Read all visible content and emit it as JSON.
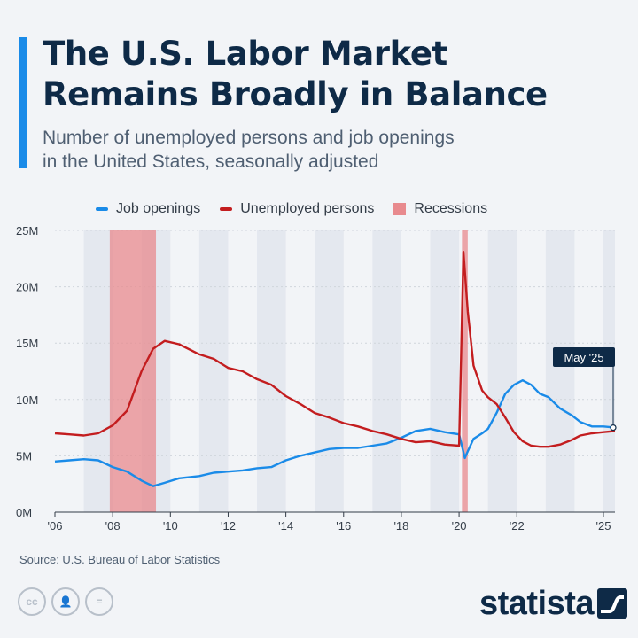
{
  "header": {
    "title_line1": "The U.S. Labor Market",
    "title_line2": "Remains Broadly in Balance",
    "subtitle_line1": "Number of unemployed persons and job openings",
    "subtitle_line2": "in the United States, seasonally adjusted"
  },
  "footer": {
    "source": "Source: U.S. Bureau of Labor Statistics",
    "brand": "statista",
    "license_icons": [
      "creative-commons-icon",
      "attribution-icon",
      "no-derivatives-icon"
    ]
  },
  "colors": {
    "job_openings": "#1a8be8",
    "unemployed": "#c31d1f",
    "recession": "#e88a8e",
    "accent": "#1a8be8",
    "navy": "#0e2a47"
  },
  "chart_data": {
    "type": "line",
    "title": "",
    "xlabel": "",
    "ylabel": "",
    "ylim": [
      0,
      25
    ],
    "y_unit": "M",
    "yticks": [
      "0M",
      "5M",
      "10M",
      "15M",
      "20M",
      "25M"
    ],
    "xlim": [
      2006,
      2025.4
    ],
    "xticks": [
      "'06",
      "'08",
      "'10",
      "'12",
      "'14",
      "'16",
      "'18",
      "'20",
      "'22",
      "'25"
    ],
    "xtick_years": [
      2006,
      2008,
      2010,
      2012,
      2014,
      2016,
      2018,
      2020,
      2022,
      2025
    ],
    "grid": "alternating vertical bands per year",
    "legend": [
      "Job openings",
      "Unemployed persons",
      "Recessions"
    ],
    "legend_position": "top",
    "recessions": [
      {
        "start": 2007.9,
        "end": 2009.5
      },
      {
        "start": 2020.1,
        "end": 2020.3
      }
    ],
    "annotation": "May '25",
    "series": [
      {
        "name": "Job openings",
        "x": [
          2006.0,
          2006.5,
          2007.0,
          2007.5,
          2008.0,
          2008.5,
          2009.0,
          2009.4,
          2009.8,
          2010.3,
          2011.0,
          2011.5,
          2012.0,
          2012.5,
          2013.0,
          2013.5,
          2014.0,
          2014.5,
          2015.0,
          2015.5,
          2016.0,
          2016.5,
          2017.0,
          2017.5,
          2018.0,
          2018.5,
          2019.0,
          2019.5,
          2020.0,
          2020.2,
          2020.3,
          2020.5,
          2020.8,
          2021.0,
          2021.3,
          2021.6,
          2021.9,
          2022.2,
          2022.5,
          2022.8,
          2023.1,
          2023.5,
          2023.9,
          2024.2,
          2024.6,
          2025.0,
          2025.4
        ],
        "values": [
          4.5,
          4.6,
          4.7,
          4.6,
          4.0,
          3.6,
          2.8,
          2.3,
          2.6,
          3.0,
          3.2,
          3.5,
          3.6,
          3.7,
          3.9,
          4.0,
          4.6,
          5.0,
          5.3,
          5.6,
          5.7,
          5.7,
          5.9,
          6.1,
          6.6,
          7.2,
          7.4,
          7.1,
          6.9,
          4.8,
          5.4,
          6.5,
          7.0,
          7.4,
          8.8,
          10.5,
          11.3,
          11.7,
          11.3,
          10.5,
          10.2,
          9.2,
          8.6,
          8.0,
          7.6,
          7.6,
          7.5
        ]
      },
      {
        "name": "Unemployed persons",
        "x": [
          2006.0,
          2006.5,
          2007.0,
          2007.5,
          2008.0,
          2008.5,
          2009.0,
          2009.4,
          2009.8,
          2010.3,
          2011.0,
          2011.5,
          2012.0,
          2012.5,
          2013.0,
          2013.5,
          2014.0,
          2014.5,
          2015.0,
          2015.5,
          2016.0,
          2016.5,
          2017.0,
          2017.5,
          2018.0,
          2018.5,
          2019.0,
          2019.5,
          2020.0,
          2020.15,
          2020.3,
          2020.5,
          2020.8,
          2021.0,
          2021.3,
          2021.6,
          2021.9,
          2022.2,
          2022.5,
          2022.8,
          2023.1,
          2023.5,
          2023.9,
          2024.2,
          2024.6,
          2025.0,
          2025.4
        ],
        "values": [
          7.0,
          6.9,
          6.8,
          7.0,
          7.7,
          9.0,
          12.5,
          14.5,
          15.2,
          14.9,
          14.0,
          13.6,
          12.8,
          12.5,
          11.8,
          11.3,
          10.3,
          9.6,
          8.8,
          8.4,
          7.9,
          7.6,
          7.2,
          6.9,
          6.5,
          6.2,
          6.3,
          6.0,
          5.9,
          23.1,
          17.8,
          13.0,
          10.8,
          10.2,
          9.6,
          8.4,
          7.1,
          6.3,
          5.9,
          5.8,
          5.8,
          6.0,
          6.4,
          6.8,
          7.0,
          7.1,
          7.2
        ]
      }
    ]
  }
}
